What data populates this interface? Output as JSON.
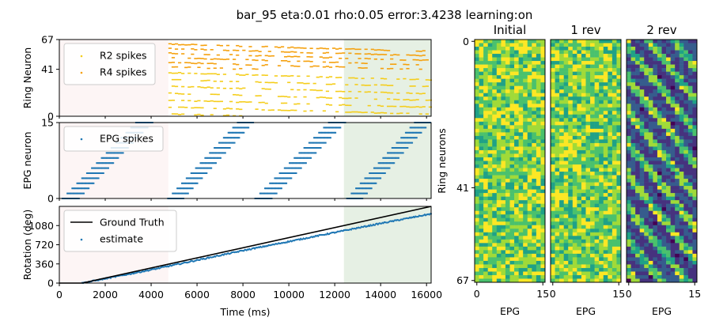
{
  "title": "bar_95 eta:0.01 rho:0.05 error:3.4238 learning:on",
  "colors": {
    "r2": "#f5cd1a",
    "r4": "#f5a00c",
    "epg": "#1f77b4",
    "truth": "#000000",
    "shade_a": "#fdf5f5",
    "shade_b": "#e6f0e4"
  },
  "chart_data": [
    {
      "type": "scatter",
      "name": "ring-spikes",
      "ylabel": "Ring Neuron",
      "xlim": [
        0,
        16200
      ],
      "ylim": [
        0,
        67
      ],
      "yticks": [
        "0",
        "41",
        "67"
      ],
      "ytick_values": [
        0,
        41,
        67
      ],
      "shaded_regions": [
        [
          0,
          4750
        ],
        [
          12400,
          16200
        ]
      ],
      "legend": [
        "R2 spikes",
        "R4 spikes"
      ],
      "legend_position": "upper-left",
      "series": [
        {
          "name": "R2 spikes",
          "neuron_range": [
            0,
            41
          ],
          "active_from_ms": 4750
        },
        {
          "name": "R4 spikes",
          "neuron_range": [
            41,
            67
          ],
          "active_from_ms": 4750
        }
      ]
    },
    {
      "type": "scatter",
      "name": "epg-spikes",
      "ylabel": "EPG neuron",
      "xlim": [
        0,
        16200
      ],
      "ylim": [
        0,
        15
      ],
      "yticks": [
        "0",
        "15"
      ],
      "ytick_values": [
        0,
        15
      ],
      "shaded_regions": [
        [
          0,
          4750
        ],
        [
          12400,
          16200
        ]
      ],
      "legend": [
        "EPG spikes"
      ],
      "legend_position": "upper-left",
      "sweeps": [
        {
          "start_ms": 100,
          "end_ms": 3900
        },
        {
          "start_ms": 4700,
          "end_ms": 8300
        },
        {
          "start_ms": 8500,
          "end_ms": 12300
        },
        {
          "start_ms": 12500,
          "end_ms": 16000
        }
      ]
    },
    {
      "type": "line",
      "name": "rotation",
      "xlabel": "Time (ms)",
      "ylabel": "Rotation (deg)",
      "xlim": [
        0,
        16200
      ],
      "ylim": [
        0,
        1440
      ],
      "xticks": [
        "0",
        "2000",
        "4000",
        "6000",
        "8000",
        "10000",
        "12000",
        "14000",
        "16000"
      ],
      "xtick_values": [
        0,
        2000,
        4000,
        6000,
        8000,
        10000,
        12000,
        14000,
        16000
      ],
      "yticks": [
        "0",
        "360",
        "720",
        "1080"
      ],
      "ytick_values": [
        0,
        360,
        720,
        1080
      ],
      "shaded_regions": [
        [
          0,
          4750
        ],
        [
          12400,
          16200
        ]
      ],
      "legend": [
        "Ground Truth",
        "estimate"
      ],
      "legend_position": "upper-left",
      "series": [
        {
          "name": "Ground Truth",
          "x": [
            1000,
            16200
          ],
          "y": [
            0,
            1440
          ]
        },
        {
          "name": "estimate",
          "x": [
            1000,
            4000,
            8000,
            12000,
            14000,
            16200
          ],
          "y": [
            0,
            250,
            610,
            950,
            1120,
            1300
          ]
        }
      ]
    },
    {
      "type": "heatmap",
      "name": "weights-initial",
      "title": "Initial",
      "xlabel": "EPG",
      "rows": 68,
      "cols": 16,
      "xticks": [
        "0",
        "15"
      ],
      "pattern": "random"
    },
    {
      "type": "heatmap",
      "name": "weights-1rev",
      "title": "1 rev",
      "xlabel": "EPG",
      "rows": 68,
      "cols": 16,
      "xticks": [
        "0",
        "15"
      ],
      "pattern": "random"
    },
    {
      "type": "heatmap",
      "name": "weights-2rev",
      "title": "2 rev",
      "xlabel": "EPG",
      "rows": 68,
      "cols": 16,
      "xticks": [
        "0",
        "15"
      ],
      "pattern": "diagonal-bands"
    }
  ],
  "heatmap_axis": {
    "ylabel": "Ring neurons",
    "yticks": [
      "0",
      "41",
      "67"
    ],
    "ytick_values": [
      0,
      41,
      67
    ]
  }
}
